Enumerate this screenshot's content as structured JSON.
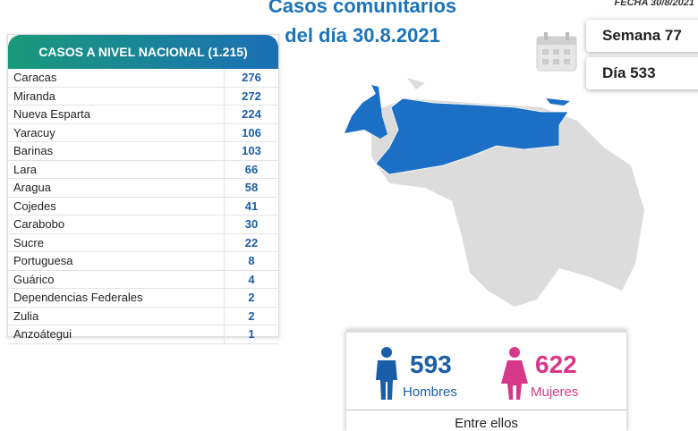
{
  "header": {
    "title_line1": "Casos comunitarios",
    "title_line2": "del día 30.8.2021",
    "date": "FECHA 30/8/2021",
    "week": "Semana 77",
    "day": "Día 533"
  },
  "table": {
    "header": "CASOS A NIVEL NACIONAL (1.215)",
    "rows": [
      [
        "Caracas",
        276
      ],
      [
        "Miranda",
        272
      ],
      [
        "Nueva Esparta",
        224
      ],
      [
        "Yaracuy",
        106
      ],
      [
        "Barinas",
        103
      ],
      [
        "Lara",
        66
      ],
      [
        "Aragua",
        58
      ],
      [
        "Cojedes",
        41
      ],
      [
        "Carabobo",
        30
      ],
      [
        "Sucre",
        22
      ],
      [
        "Portuguesa",
        8
      ],
      [
        "Guárico",
        4
      ],
      [
        "Dependencias Federales",
        2
      ],
      [
        "Zulia",
        2
      ],
      [
        "Anzoátegui",
        1
      ]
    ]
  },
  "gender": {
    "men": {
      "value": 593,
      "label": "Hombres"
    },
    "women": {
      "value": 622,
      "label": "Mujeres"
    },
    "footer": "Entre ellos"
  }
}
